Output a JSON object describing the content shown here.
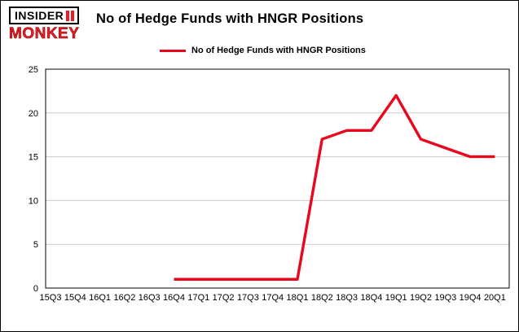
{
  "header": {
    "logo": {
      "line1": "INSIDER",
      "line2": "MONKEY"
    },
    "title": "No of Hedge Funds with HNGR Positions"
  },
  "legend": {
    "label": "No of Hedge Funds with HNGR Positions"
  },
  "colors": {
    "line": "#e8071d",
    "logo_red": "#ed1c24",
    "grid": "#cccccc",
    "axis": "#000000",
    "text": "#000000"
  },
  "chart_data": {
    "type": "line",
    "title": "No of Hedge Funds with HNGR Positions",
    "series_name": "No of Hedge Funds with HNGR Positions",
    "categories": [
      "15Q3",
      "15Q4",
      "16Q1",
      "16Q2",
      "16Q3",
      "16Q4",
      "17Q1",
      "17Q2",
      "17Q3",
      "17Q4",
      "18Q1",
      "18Q2",
      "18Q3",
      "18Q4",
      "19Q1",
      "19Q2",
      "19Q3",
      "19Q4",
      "20Q1"
    ],
    "values": [
      null,
      null,
      null,
      null,
      null,
      1,
      1,
      1,
      1,
      1,
      1,
      17,
      18,
      18,
      22,
      17,
      16,
      15,
      15
    ],
    "ylim": [
      0,
      25
    ],
    "yticks": [
      0,
      5,
      10,
      15,
      20,
      25
    ],
    "grid": true,
    "legend_position": "top",
    "xlabel": "",
    "ylabel": ""
  }
}
